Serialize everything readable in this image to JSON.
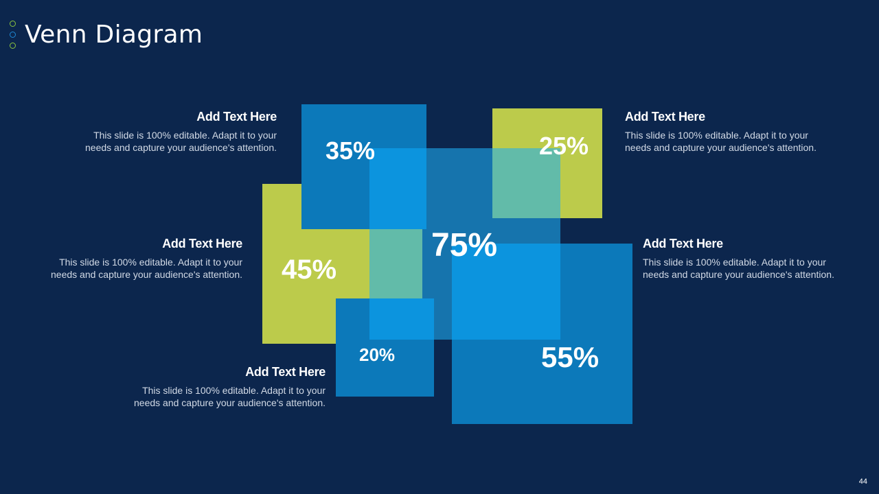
{
  "slide": {
    "title": "Venn Diagram",
    "page_number": "44"
  },
  "colors": {
    "background": "#0c264d",
    "lime": "#bccb4b",
    "blue": "#0c79ba",
    "center": "#3e9be3",
    "overlap_blue": "#0c94de",
    "overlap_teal": "#62bba9"
  },
  "diagram": {
    "center": {
      "value": "75%"
    },
    "squares": [
      {
        "value": "35%"
      },
      {
        "value": "25%"
      },
      {
        "value": "45%"
      },
      {
        "value": "55%"
      },
      {
        "value": "20%"
      }
    ]
  },
  "text_blocks": [
    {
      "heading": "Add Text Here",
      "body": "This slide is 100% editable. Adapt it to your needs and capture your audience's attention."
    },
    {
      "heading": "Add Text Here",
      "body": "This slide is 100% editable. Adapt it to your needs and capture your audience's attention."
    },
    {
      "heading": "Add Text Here",
      "body": "This slide is 100% editable. Adapt it to your needs and capture your audience's attention."
    },
    {
      "heading": "Add Text Here",
      "body": "This slide is 100% editable. Adapt it to your needs and capture your audience's attention."
    },
    {
      "heading": "Add Text Here",
      "body": "This slide is 100% editable. Adapt it to your needs and capture your audience's attention."
    }
  ]
}
